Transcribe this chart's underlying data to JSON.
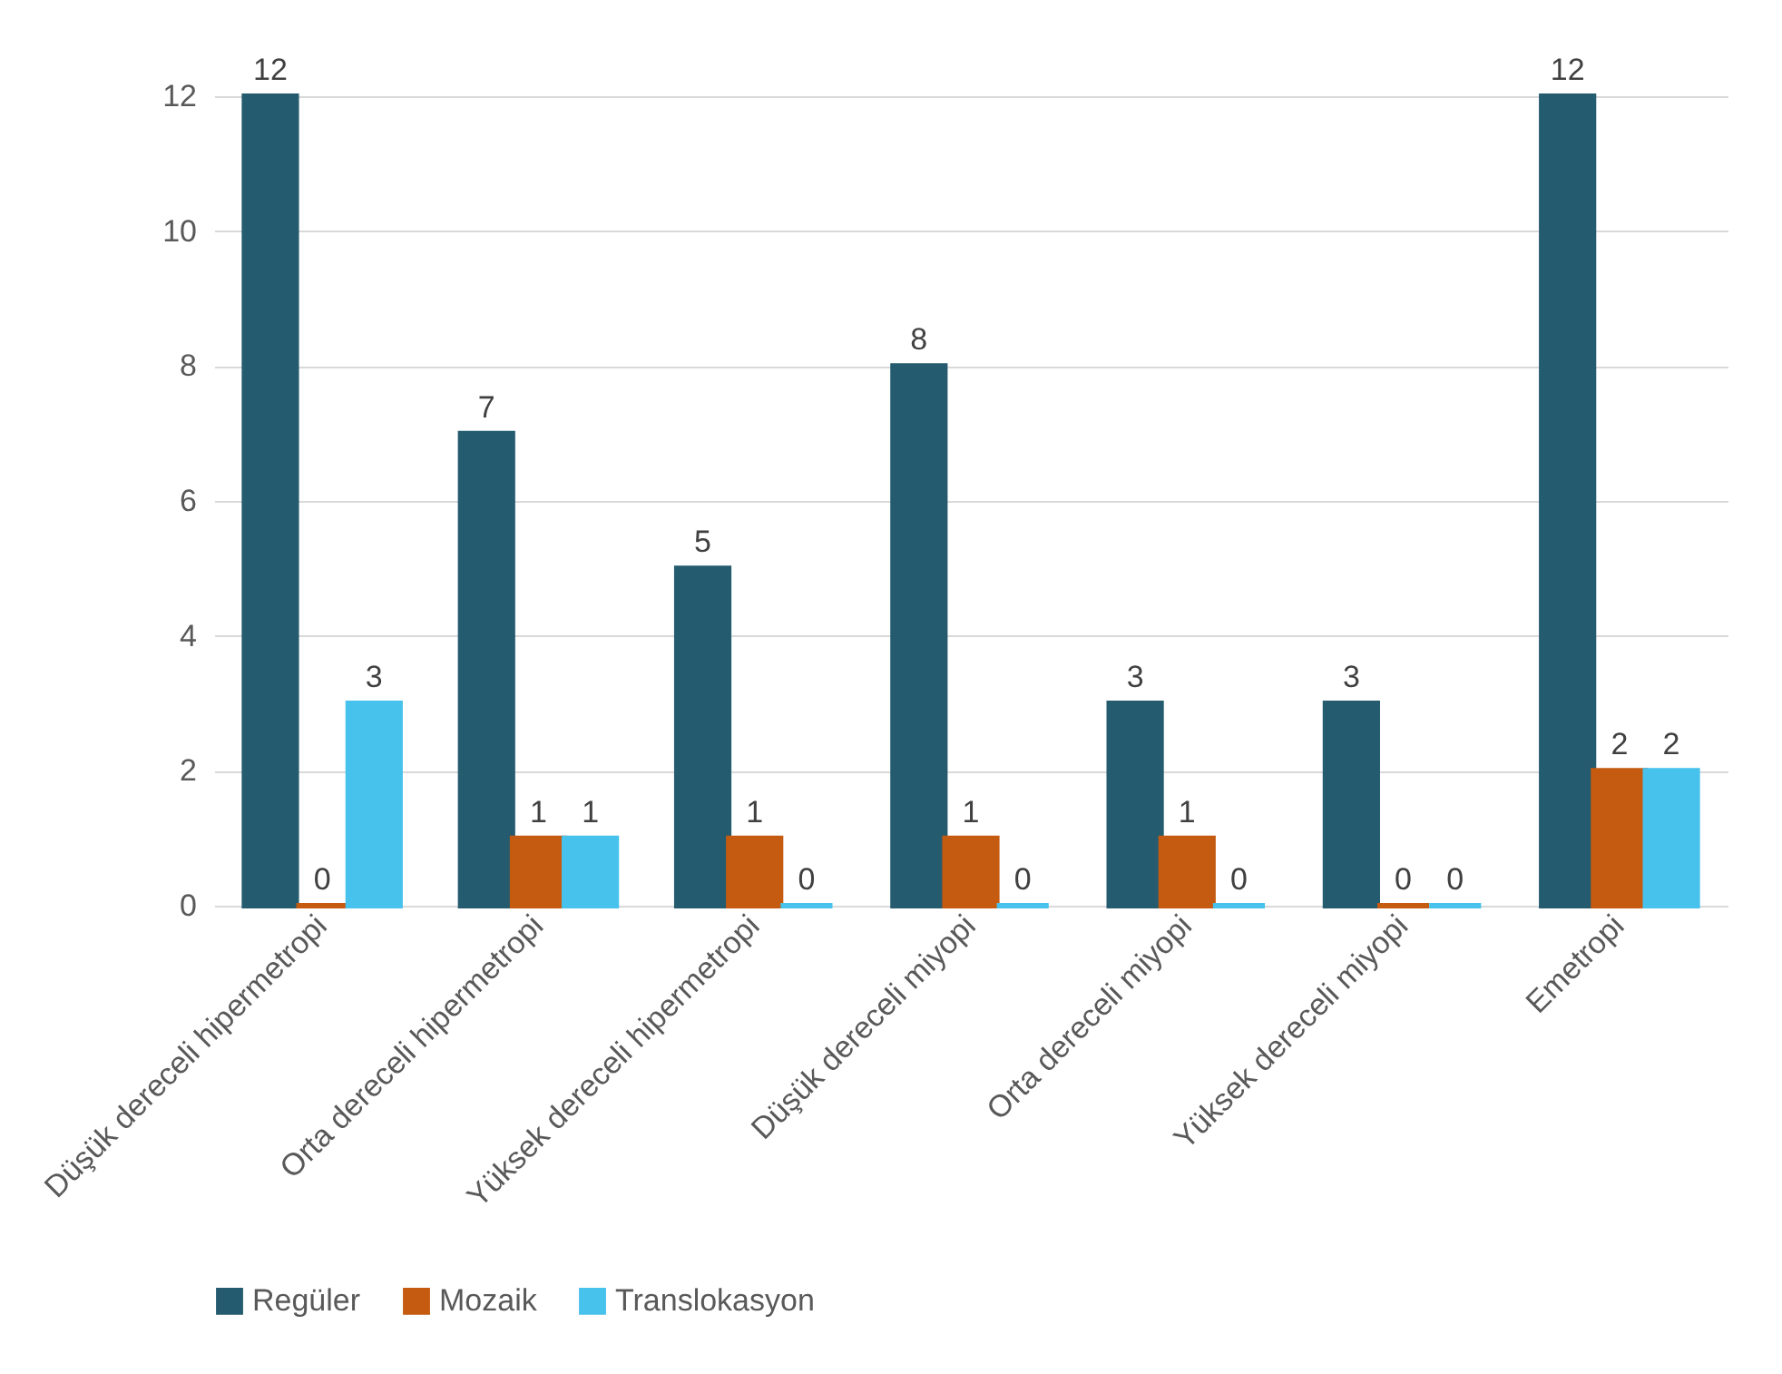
{
  "chart_data": {
    "type": "bar",
    "categories": [
      "Düşük dereceli hipermetropi",
      "Orta dereceli hipermetropi",
      "Yüksek dereceli hipermetropi",
      "Düşük dereceli miyopi",
      "Orta dereceli miyopi",
      "Yüksek dereceli miyopi",
      "Emetropi"
    ],
    "series": [
      {
        "name": "Regüler",
        "color": "#245b6e",
        "values": [
          12,
          7,
          5,
          8,
          3,
          3,
          12
        ]
      },
      {
        "name": "Mozaik",
        "color": "#c55a11",
        "values": [
          0,
          1,
          1,
          1,
          1,
          0,
          2
        ]
      },
      {
        "name": "Translokasyon",
        "color": "#47c2ec",
        "values": [
          3,
          1,
          0,
          0,
          0,
          0,
          2
        ]
      }
    ],
    "ylim": [
      0,
      12
    ],
    "yticks": [
      0,
      2,
      4,
      6,
      8,
      10,
      12
    ],
    "grid": "y",
    "legend": "bottom",
    "data_labels": true
  }
}
